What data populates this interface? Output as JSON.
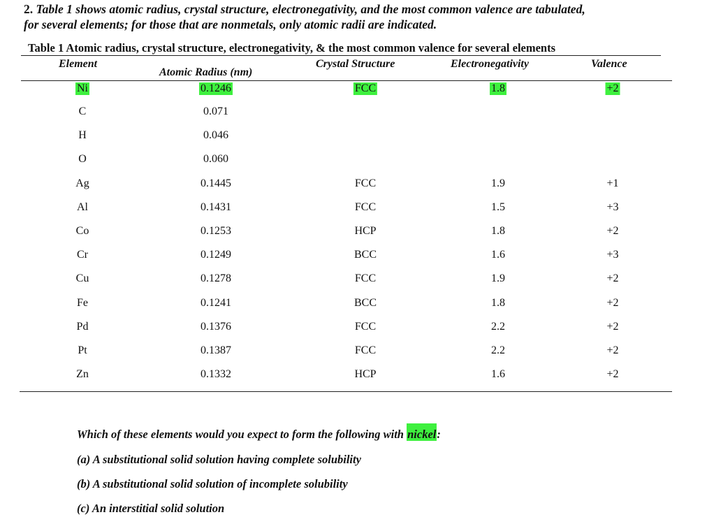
{
  "question": {
    "number": "2.",
    "line1": "Table 1 shows atomic radius, crystal structure, electronegativity, and the most common valence are tabulated,",
    "line2": "for several elements; for those that are nonmetals, only atomic radii are indicated."
  },
  "table": {
    "caption": "Table 1 Atomic radius, crystal structure, electronegativity, & the most common valence for several elements",
    "headers": {
      "element": "Element",
      "radius": "Atomic Radius (nm)",
      "structure": "Crystal Structure",
      "electronegativity": "Electronegativity",
      "valence": "Valence"
    },
    "rows": [
      {
        "element": "Ni",
        "radius": "0.1246",
        "structure": "FCC",
        "electronegativity": "1.8",
        "valence": "+2"
      },
      {
        "element": "C",
        "radius": "0.071",
        "structure": "",
        "electronegativity": "",
        "valence": ""
      },
      {
        "element": "H",
        "radius": "0.046",
        "structure": "",
        "electronegativity": "",
        "valence": ""
      },
      {
        "element": "O",
        "radius": "0.060",
        "structure": "",
        "electronegativity": "",
        "valence": ""
      },
      {
        "element": "Ag",
        "radius": "0.1445",
        "structure": "FCC",
        "electronegativity": "1.9",
        "valence": "+1"
      },
      {
        "element": "Al",
        "radius": "0.1431",
        "structure": "FCC",
        "electronegativity": "1.5",
        "valence": "+3"
      },
      {
        "element": "Co",
        "radius": "0.1253",
        "structure": "HCP",
        "electronegativity": "1.8",
        "valence": "+2"
      },
      {
        "element": "Cr",
        "radius": "0.1249",
        "structure": "BCC",
        "electronegativity": "1.6",
        "valence": "+3"
      },
      {
        "element": "Cu",
        "radius": "0.1278",
        "structure": "FCC",
        "electronegativity": "1.9",
        "valence": "+2"
      },
      {
        "element": "Fe",
        "radius": "0.1241",
        "structure": "BCC",
        "electronegativity": "1.8",
        "valence": "+2"
      },
      {
        "element": "Pd",
        "radius": "0.1376",
        "structure": "FCC",
        "electronegativity": "2.2",
        "valence": "+2"
      },
      {
        "element": "Pt",
        "radius": "0.1387",
        "structure": "FCC",
        "electronegativity": "2.2",
        "valence": "+2"
      },
      {
        "element": "Zn",
        "radius": "0.1332",
        "structure": "HCP",
        "electronegativity": "1.6",
        "valence": "+2"
      }
    ]
  },
  "prompt": {
    "text": "Which of these elements would you expect to form the following with ",
    "highlight": "nickel",
    "suffix": ":",
    "items": [
      "(a) A substitutional solid solution having complete solubility",
      "(b) A substitutional solid solution of incomplete solubility",
      "(c) An interstitial solid solution"
    ]
  },
  "colors": {
    "highlight": "#3ef03e"
  }
}
